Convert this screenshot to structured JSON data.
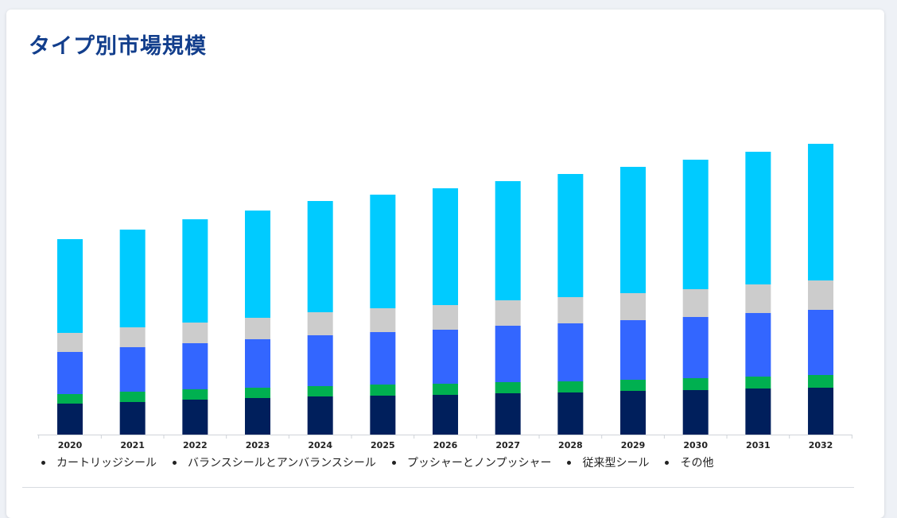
{
  "page": {
    "title": "タイプ別市場規模"
  },
  "chart_data": {
    "type": "bar",
    "stacked": true,
    "categories": [
      "2020",
      "2021",
      "2022",
      "2023",
      "2024",
      "2025",
      "2026",
      "2027",
      "2028",
      "2029",
      "2030",
      "2031",
      "2032"
    ],
    "ylim": [
      0,
      385
    ],
    "y_axis_shown": false,
    "grid": false,
    "legend_position": "bottom",
    "series": [
      {
        "name": "カートリッジシール",
        "color": "#001f5c",
        "values": [
          39,
          41,
          44,
          46,
          48,
          49,
          50,
          52,
          53,
          55,
          56,
          58,
          59
        ]
      },
      {
        "name": "バランスシールとアンバランスシール",
        "color": "#00b050",
        "values": [
          12,
          13,
          13,
          13,
          13,
          14,
          14,
          14,
          14,
          14,
          15,
          15,
          16
        ]
      },
      {
        "name": "プッシャーとノンプッシャー",
        "color": "#3366ff",
        "values": [
          53,
          56,
          58,
          61,
          64,
          66,
          68,
          71,
          73,
          75,
          77,
          80,
          82
        ]
      },
      {
        "name": "従来型シール",
        "color": "#cccccc",
        "values": [
          24,
          25,
          26,
          27,
          29,
          30,
          31,
          32,
          33,
          34,
          35,
          36,
          37
        ]
      },
      {
        "name": "その他",
        "color": "#00cbff",
        "values": [
          118,
          123,
          130,
          135,
          140,
          143,
          147,
          150,
          155,
          159,
          163,
          167,
          172
        ]
      }
    ]
  }
}
